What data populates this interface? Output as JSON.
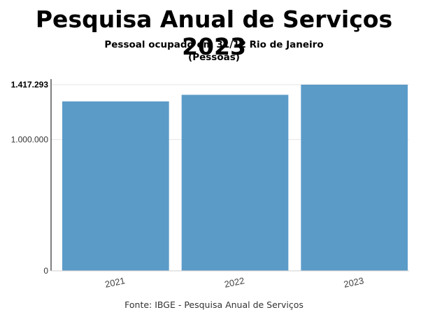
{
  "chart_data": {
    "type": "bar",
    "title": "Pesquisa Anual de Serviços 2023",
    "subtitle_line1": "Pessoal ocupado em 31/12 Rio de Janeiro",
    "subtitle_line2": "(Pessoas)",
    "categories": [
      "2021",
      "2022",
      "2023"
    ],
    "values": [
      1290000,
      1340000,
      1417293
    ],
    "ylim": [
      0,
      1417293
    ],
    "yticks": [
      {
        "value": 0,
        "label": "0"
      },
      {
        "value": 1000000,
        "label": "1.000.000"
      },
      {
        "value": 1417293,
        "label": "1.417.293"
      }
    ],
    "bar_color": "#5b9bc8",
    "grid": true,
    "source": "Fonte: IBGE - Pesquisa Anual de Serviços"
  }
}
